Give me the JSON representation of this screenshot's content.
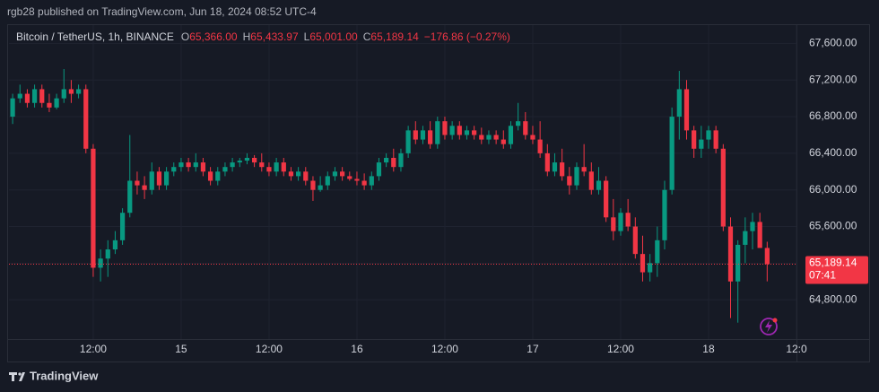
{
  "header": {
    "published": "rgb28 published on TradingView.com, Jun 18, 2024 08:52 UTC-4"
  },
  "footer": {
    "brand": "TradingView"
  },
  "chart_data": {
    "type": "candlestick",
    "legend": {
      "symbol": "Bitcoin / TetherUS, 1h, BINANCE",
      "items": [
        {
          "label": "O",
          "value": "65,366.00"
        },
        {
          "label": "H",
          "value": "65,433.97"
        },
        {
          "label": "L",
          "value": "65,001.00"
        },
        {
          "label": "C",
          "value": "65,189.14"
        }
      ],
      "change": "−176.86 (−0.27%)"
    },
    "last_price_label": "65,189.14",
    "countdown": "07:41",
    "up_color": "#089981",
    "down_color": "#f23645",
    "grid": true,
    "xlim": [
      -0.5,
      107
    ],
    "xticks": [
      {
        "value": 11,
        "label": "12:00"
      },
      {
        "value": 23,
        "label": "15"
      },
      {
        "value": 35,
        "label": "12:00"
      },
      {
        "value": 47,
        "label": "16"
      },
      {
        "value": 59,
        "label": "12:00"
      },
      {
        "value": 71,
        "label": "17"
      },
      {
        "value": 83,
        "label": "12:00"
      },
      {
        "value": 95,
        "label": "18"
      },
      {
        "value": 107,
        "label": "12:0"
      }
    ],
    "ylim": [
      64400,
      67800
    ],
    "yticks": [
      {
        "value": 64800,
        "label": "64,800.00"
      },
      {
        "value": 65200,
        "label": "65,200.00"
      },
      {
        "value": 65600,
        "label": "65,600.00"
      },
      {
        "value": 66000,
        "label": "66,000.00"
      },
      {
        "value": 66400,
        "label": "66,400.00"
      },
      {
        "value": 66800,
        "label": "66,800.00"
      },
      {
        "value": 67200,
        "label": "67,200.00"
      },
      {
        "value": 67600,
        "label": "67,600.00"
      }
    ],
    "open": [
      66800,
      67000,
      67050,
      66950,
      67100,
      66950,
      66900,
      67000,
      67100,
      67050,
      67100,
      66450,
      65150,
      65250,
      65350,
      65450,
      65750,
      66100,
      66050,
      66000,
      66200,
      66050,
      66200,
      66250,
      66300,
      66250,
      66300,
      66200,
      66100,
      66200,
      66250,
      66300,
      66320,
      66350,
      66300,
      66250,
      66200,
      66300,
      66200,
      66150,
      66200,
      66100,
      66000,
      66050,
      66150,
      66200,
      66150,
      66120,
      66100,
      66050,
      66150,
      66300,
      66350,
      66250,
      66400,
      66650,
      66550,
      66650,
      66500,
      66750,
      66600,
      66700,
      66600,
      66650,
      66600,
      66550,
      66600,
      66550,
      66500,
      66700,
      66750,
      66600,
      66550,
      66400,
      66200,
      66300,
      66150,
      66050,
      66250,
      66200,
      66000,
      66100,
      65700,
      65550,
      65750,
      65600,
      65300,
      65100,
      65200,
      65450,
      66000,
      66800,
      67100,
      66650,
      66450,
      66550,
      66650,
      66450,
      65600,
      65000,
      65400,
      65550,
      65650,
      65366
    ],
    "high": [
      67050,
      67150,
      67100,
      67150,
      67150,
      67050,
      67050,
      67320,
      67200,
      67150,
      67150,
      66500,
      65350,
      65450,
      65550,
      65800,
      66600,
      66200,
      66150,
      66300,
      66250,
      66250,
      66300,
      66350,
      66350,
      66400,
      66350,
      66250,
      66250,
      66300,
      66350,
      66350,
      66400,
      66380,
      66400,
      66300,
      66350,
      66350,
      66250,
      66250,
      66250,
      66150,
      66150,
      66200,
      66250,
      66250,
      66200,
      66200,
      66180,
      66200,
      66350,
      66400,
      66450,
      66450,
      66700,
      66750,
      66700,
      66750,
      66800,
      66800,
      66750,
      66750,
      66700,
      66700,
      66680,
      66650,
      66650,
      66650,
      66750,
      66950,
      66850,
      66700,
      66750,
      66500,
      66400,
      66450,
      66250,
      66300,
      66500,
      66300,
      66250,
      66150,
      65900,
      65800,
      65900,
      65700,
      65500,
      65300,
      65600,
      66100,
      66900,
      67300,
      67200,
      66700,
      66700,
      66700,
      66700,
      66500,
      65700,
      65450,
      65700,
      65750,
      65750,
      65433.97
    ],
    "low": [
      66720,
      66950,
      66900,
      66900,
      66900,
      66850,
      66880,
      66950,
      66950,
      67000,
      66400,
      65050,
      65000,
      65050,
      65300,
      65400,
      65700,
      65950,
      65900,
      65950,
      66000,
      66000,
      66150,
      66200,
      66200,
      66200,
      66150,
      66050,
      66050,
      66150,
      66200,
      66250,
      66280,
      66250,
      66200,
      66150,
      66150,
      66150,
      66100,
      66100,
      66050,
      65880,
      65980,
      66000,
      66100,
      66100,
      66100,
      66050,
      66000,
      66000,
      66100,
      66250,
      66200,
      66200,
      66350,
      66500,
      66500,
      66450,
      66450,
      66550,
      66550,
      66550,
      66550,
      66550,
      66500,
      66500,
      66500,
      66450,
      66450,
      66650,
      66550,
      66500,
      66350,
      66150,
      66150,
      66100,
      65950,
      66000,
      66150,
      65950,
      65950,
      65650,
      65450,
      65500,
      65550,
      65250,
      65000,
      65000,
      65050,
      65350,
      65950,
      66550,
      66550,
      66350,
      66350,
      66450,
      66400,
      65550,
      64600,
      64550,
      65200,
      65350,
      65400,
      65001
    ],
    "close": [
      67000,
      67050,
      66950,
      67100,
      66950,
      66900,
      67000,
      67100,
      67050,
      67100,
      66450,
      65150,
      65250,
      65350,
      65450,
      65750,
      66100,
      66050,
      66000,
      66200,
      66050,
      66200,
      66250,
      66300,
      66250,
      66300,
      66200,
      66100,
      66200,
      66250,
      66300,
      66320,
      66350,
      66300,
      66250,
      66200,
      66300,
      66200,
      66150,
      66200,
      66100,
      66000,
      66050,
      66150,
      66200,
      66150,
      66120,
      66100,
      66050,
      66150,
      66300,
      66350,
      66250,
      66400,
      66650,
      66550,
      66650,
      66500,
      66750,
      66600,
      66700,
      66600,
      66650,
      66600,
      66550,
      66600,
      66550,
      66500,
      66700,
      66750,
      66600,
      66550,
      66400,
      66200,
      66300,
      66150,
      66050,
      66250,
      66200,
      66000,
      66100,
      65700,
      65550,
      65750,
      65600,
      65300,
      65100,
      65200,
      65450,
      66000,
      66800,
      67100,
      66650,
      66450,
      66550,
      66650,
      66450,
      65600,
      65000,
      65400,
      65550,
      65650,
      65366,
      65189.14
    ]
  }
}
